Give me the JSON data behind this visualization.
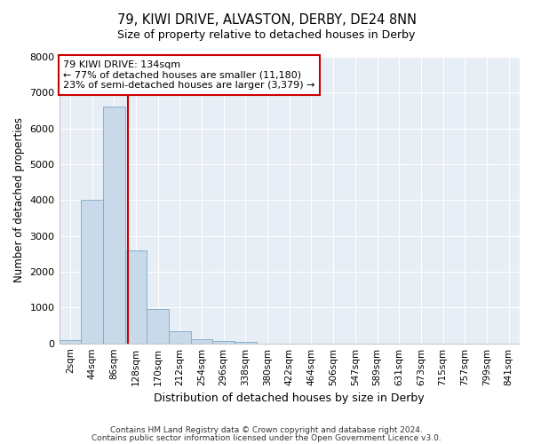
{
  "title": "79, KIWI DRIVE, ALVASTON, DERBY, DE24 8NN",
  "subtitle": "Size of property relative to detached houses in Derby",
  "xlabel": "Distribution of detached houses by size in Derby",
  "ylabel": "Number of detached properties",
  "bar_color": "#c8d9ea",
  "bar_edge_color": "#7aaac8",
  "plot_bg_color": "#e8eef5",
  "fig_bg_color": "#ffffff",
  "grid_color": "#ffffff",
  "categories": [
    "2sqm",
    "44sqm",
    "86sqm",
    "128sqm",
    "170sqm",
    "212sqm",
    "254sqm",
    "296sqm",
    "338sqm",
    "380sqm",
    "422sqm",
    "464sqm",
    "506sqm",
    "547sqm",
    "589sqm",
    "631sqm",
    "673sqm",
    "715sqm",
    "757sqm",
    "799sqm",
    "841sqm"
  ],
  "values": [
    80,
    4000,
    6600,
    2600,
    950,
    330,
    110,
    65,
    30,
    0,
    0,
    0,
    0,
    0,
    0,
    0,
    0,
    0,
    0,
    0,
    0
  ],
  "property_line_x": 134,
  "property_line_label": "79 KIWI DRIVE: 134sqm",
  "annotation_line1": "← 77% of detached houses are smaller (11,180)",
  "annotation_line2": "23% of semi-detached houses are larger (3,379) →",
  "annotation_box_color": "#ffffff",
  "annotation_box_edge": "#cc0000",
  "red_line_color": "#cc0000",
  "ylim": [
    0,
    8000
  ],
  "yticks": [
    0,
    1000,
    2000,
    3000,
    4000,
    5000,
    6000,
    7000,
    8000
  ],
  "bin_width": 42,
  "footnote1": "Contains HM Land Registry data © Crown copyright and database right 2024.",
  "footnote2": "Contains public sector information licensed under the Open Government Licence v3.0."
}
